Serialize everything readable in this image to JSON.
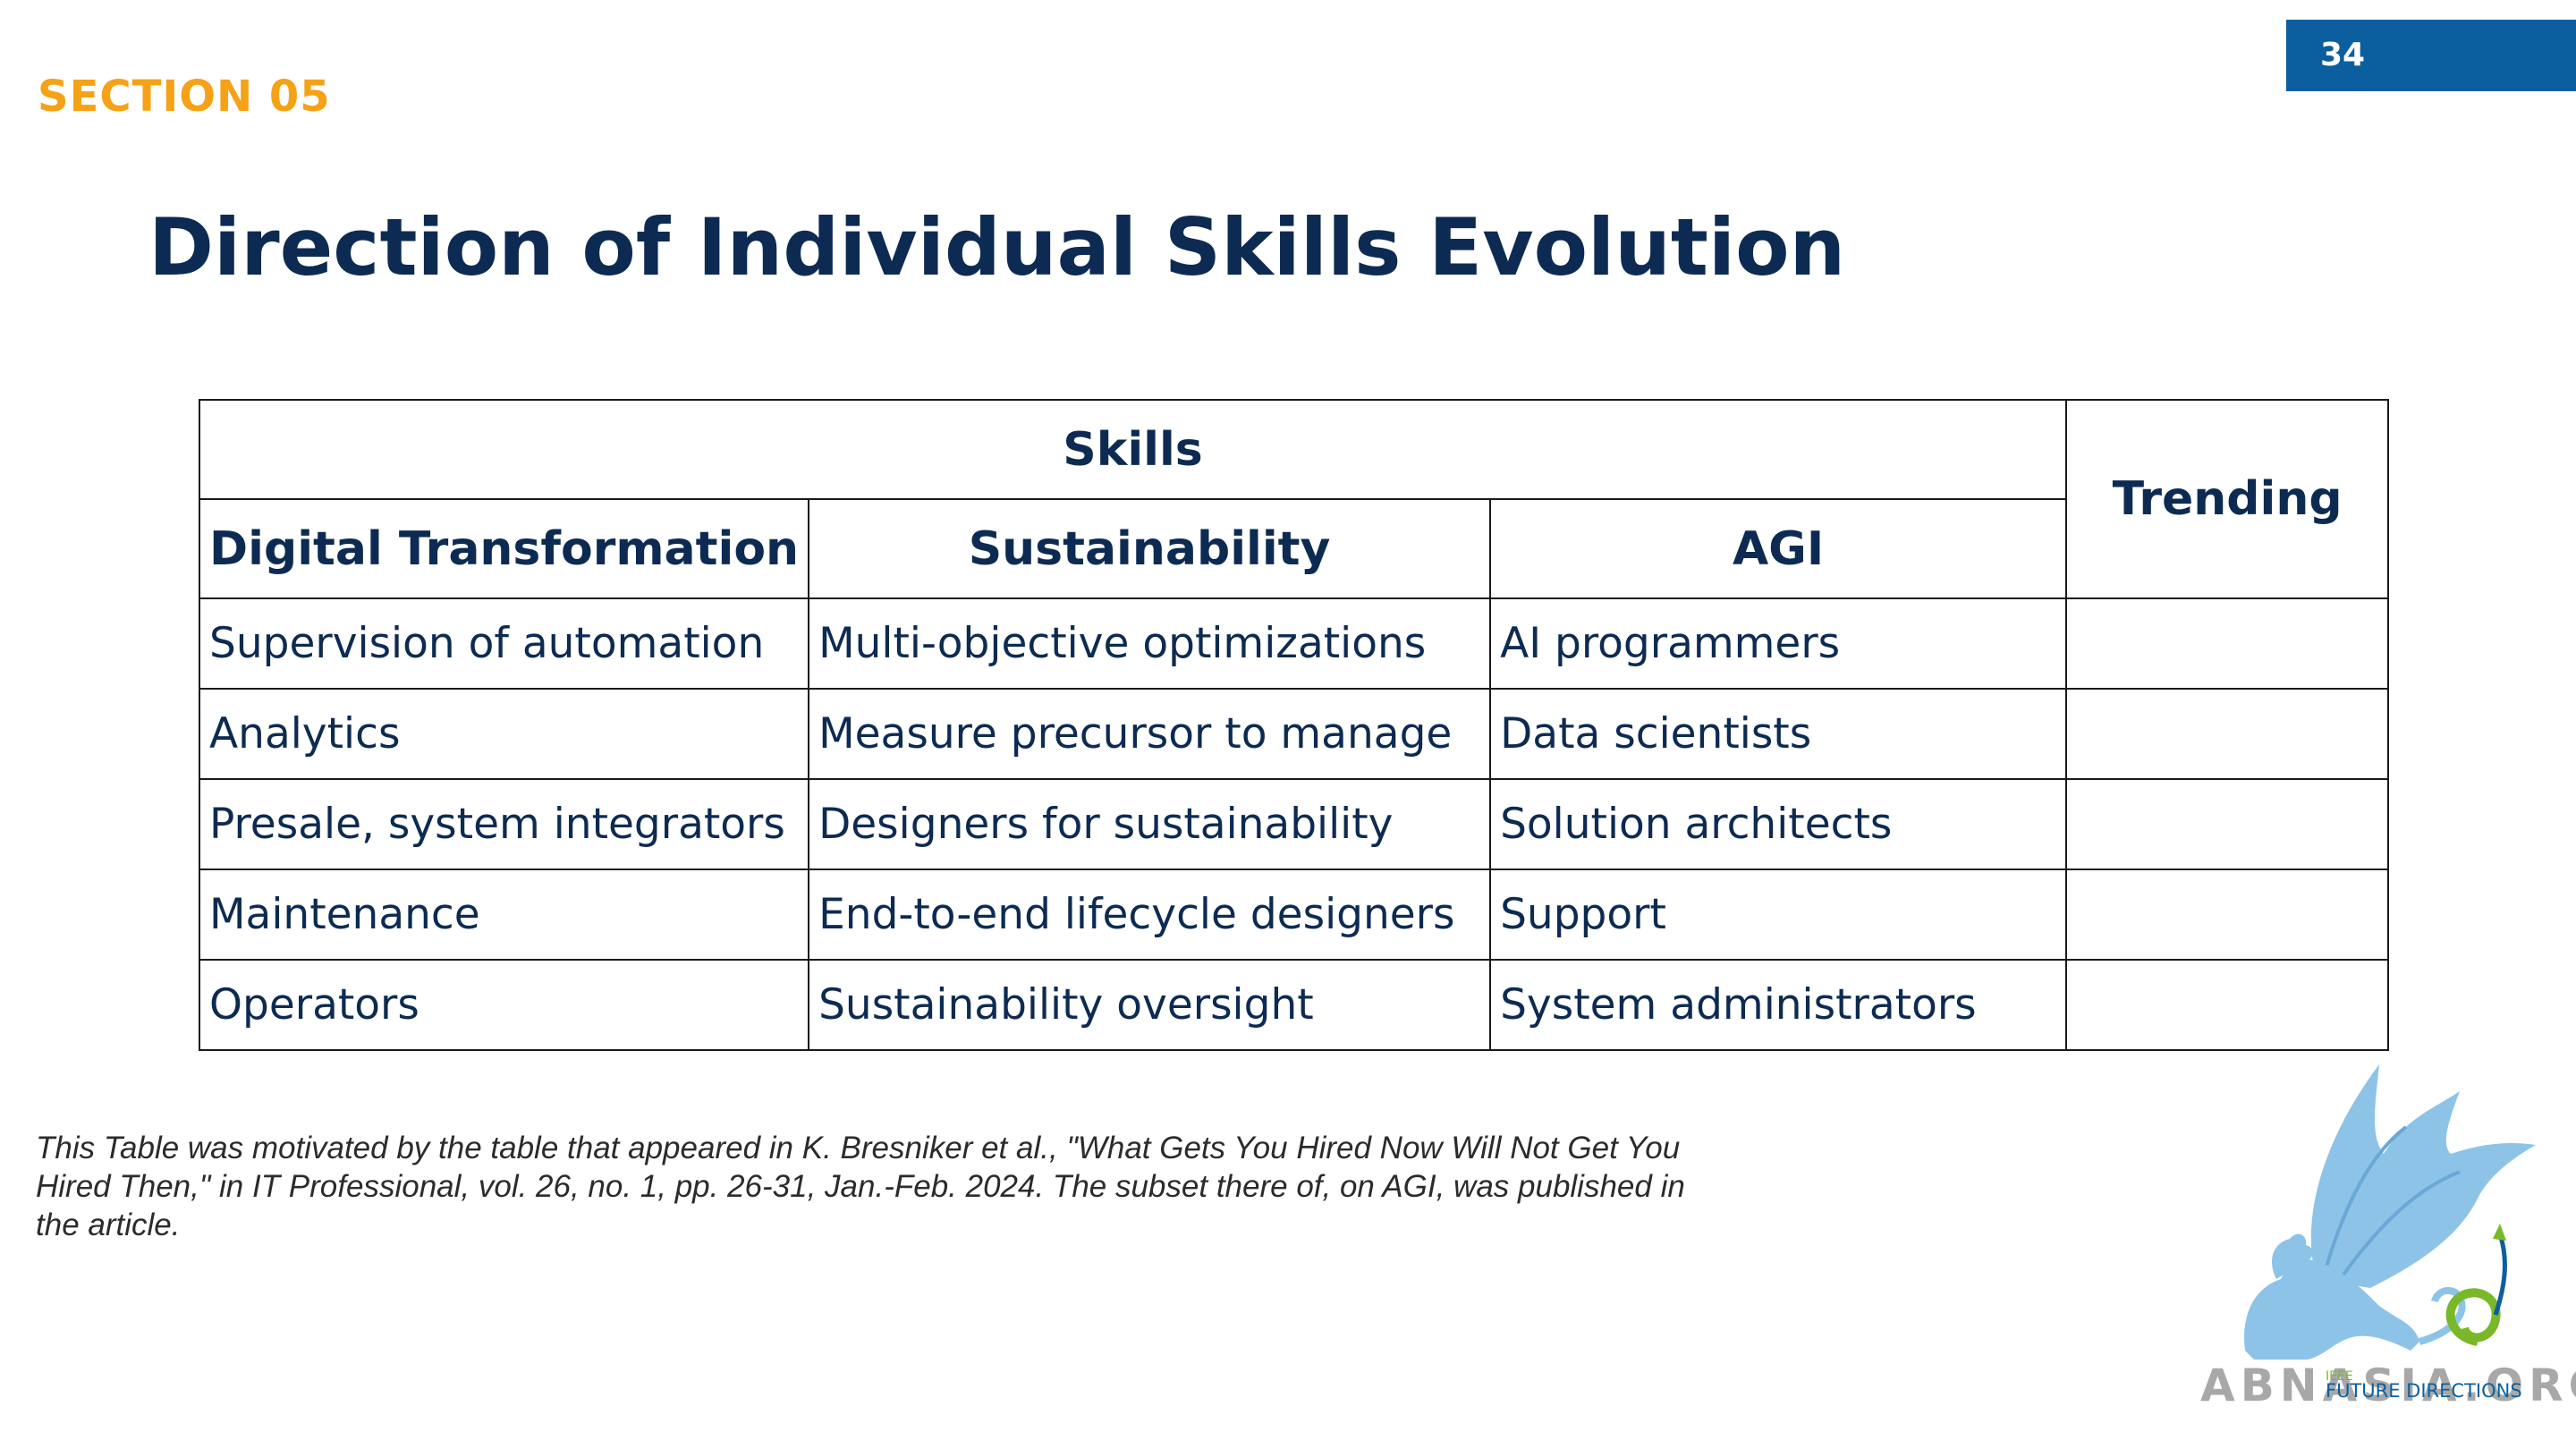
{
  "slide": {
    "page_number": "34",
    "section": "SECTION 05",
    "title": "Direction of Individual Skills Evolution"
  },
  "table": {
    "group_header": "Skills",
    "trending_header": "Trending",
    "columns": [
      "Digital Transformation",
      "Sustainability",
      "AGI"
    ],
    "rows": [
      [
        "Supervision of automation",
        "Multi-objective optimizations",
        "AI programmers",
        ""
      ],
      [
        "Analytics",
        "Measure precursor to manage",
        "Data scientists",
        ""
      ],
      [
        "Presale, system integrators",
        "Designers for sustainability",
        "Solution architects",
        ""
      ],
      [
        "Maintenance",
        "End-to-end lifecycle designers",
        "Support",
        ""
      ],
      [
        "Operators",
        "Sustainability oversight",
        "System administrators",
        ""
      ]
    ]
  },
  "citation": "This Table was motivated by the table that appeared in K. Bresniker et al., \"What Gets You Hired Now Will Not Get You Hired Then,\" in IT Professional, vol. 26, no. 1, pp. 26-31, Jan.-Feb. 2024. The subset there of, on AGI, was published in the article.",
  "watermark": {
    "text": "ABNASIA.ORG",
    "badge_small": "IEEE",
    "badge_text": "FUTURE DIRECTIONS"
  },
  "colors": {
    "accent_orange": "#f5a216",
    "navy": "#0d2b52",
    "badge_blue": "#0b5f9e",
    "logo_blue": "#8ec3e8",
    "logo_green": "#79b829"
  }
}
